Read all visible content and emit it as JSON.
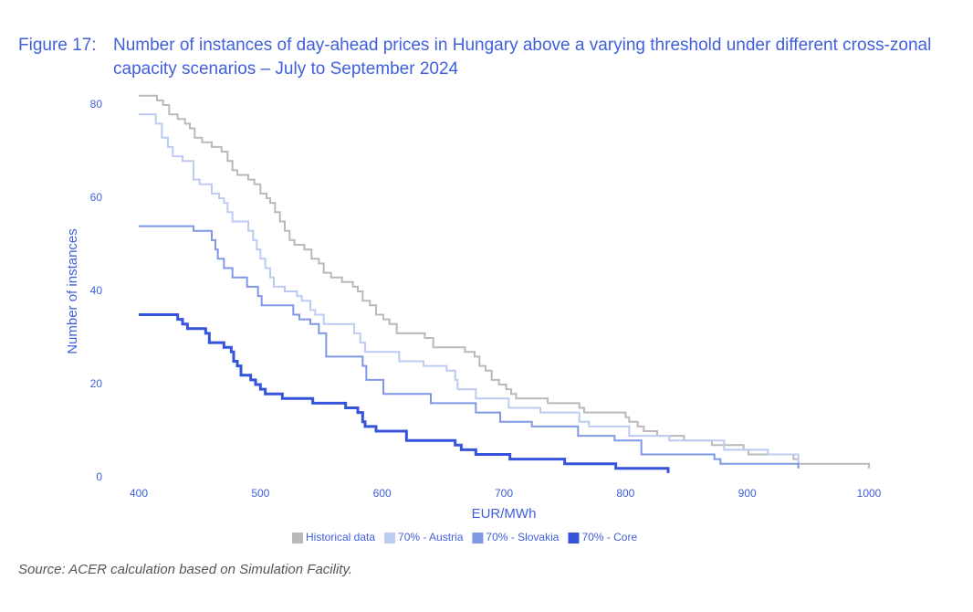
{
  "chart_data": {
    "type": "step",
    "figure_label": "Figure 17:",
    "title": "Number of instances of day-ahead prices in Hungary above a varying threshold under different cross-zonal capacity scenarios – July to September 2024",
    "x_label": "EUR/MWh",
    "y_label": "Number of instances",
    "source": "Source: ACER calculation based on Simulation Facility.",
    "xlim": [
      400,
      1000
    ],
    "xticks": [
      400,
      500,
      600,
      700,
      800,
      900,
      1000
    ],
    "ylim": [
      0,
      80
    ],
    "yticks": [
      0,
      20,
      40,
      60,
      80
    ],
    "grid": false,
    "legend": "bottom",
    "series": [
      {
        "name": "Historical data",
        "color": "#b9b9b9",
        "x": [
          400,
          415,
          420,
          425,
          432,
          438,
          442,
          446,
          452,
          460,
          468,
          473,
          477,
          481,
          490,
          495,
          500,
          505,
          508,
          512,
          516,
          520,
          524,
          528,
          536,
          542,
          548,
          552,
          558,
          567,
          576,
          580,
          584,
          590,
          595,
          601,
          606,
          612,
          635,
          642,
          668,
          676,
          680,
          685,
          690,
          696,
          702,
          706,
          710,
          736,
          762,
          766,
          800,
          803,
          810,
          815,
          826,
          848,
          871,
          897,
          901,
          938,
          942,
          1000
        ],
        "values": [
          82,
          81,
          80,
          78,
          77,
          76,
          75,
          73,
          72,
          71,
          70,
          68,
          66,
          65,
          64,
          63,
          61,
          60,
          59,
          57,
          55,
          53,
          51,
          50,
          49,
          47,
          46,
          44,
          43,
          42,
          41,
          40,
          38,
          37,
          35,
          34,
          33,
          31,
          30,
          28,
          27,
          26,
          24,
          23,
          21,
          20,
          19,
          18,
          17,
          16,
          15,
          14,
          13,
          12,
          11,
          10,
          9,
          8,
          7,
          6,
          5,
          4,
          3,
          2
        ]
      },
      {
        "name": "70% - Austria",
        "color": "#bccbf2",
        "x": [
          400,
          414,
          419,
          424,
          428,
          436,
          445,
          450,
          460,
          466,
          470,
          473,
          477,
          490,
          494,
          497,
          500,
          504,
          508,
          511,
          520,
          530,
          534,
          541,
          545,
          552,
          577,
          582,
          586,
          614,
          634,
          653,
          660,
          662,
          677,
          704,
          730,
          762,
          770,
          803,
          836,
          881,
          917,
          942
        ],
        "values": [
          78,
          76,
          73,
          71,
          69,
          68,
          64,
          63,
          61,
          60,
          59,
          57,
          55,
          53,
          51,
          49,
          47,
          45,
          43,
          41,
          40,
          39,
          38,
          36,
          35,
          33,
          31,
          29,
          27,
          25,
          24,
          23,
          21,
          19,
          17,
          15,
          14,
          12,
          11,
          9,
          8,
          6,
          5,
          2
        ]
      },
      {
        "name": "70% - Slovakia",
        "color": "#7f98e6",
        "x": [
          400,
          445,
          460,
          463,
          465,
          470,
          477,
          489,
          498,
          501,
          527,
          532,
          541,
          548,
          554,
          584,
          587,
          601,
          640,
          677,
          697,
          723,
          761,
          791,
          813,
          873,
          878,
          942
        ],
        "values": [
          54,
          53,
          51,
          49,
          47,
          45,
          43,
          41,
          39,
          37,
          35,
          34,
          33,
          31,
          26,
          24,
          21,
          18,
          16,
          14,
          12,
          11,
          9,
          8,
          5,
          4,
          3,
          2
        ]
      },
      {
        "name": "70% - Core",
        "color": "#3653dc",
        "x": [
          400,
          432,
          436,
          440,
          455,
          458,
          470,
          476,
          478,
          481,
          484,
          492,
          496,
          500,
          504,
          518,
          543,
          570,
          580,
          584,
          586,
          595,
          620,
          660,
          665,
          677,
          705,
          750,
          792,
          835
        ],
        "values": [
          35,
          34,
          33,
          32,
          31,
          29,
          28,
          27,
          25,
          24,
          22,
          21,
          20,
          19,
          18,
          17,
          16,
          15,
          14,
          12,
          11,
          10,
          8,
          7,
          6,
          5,
          4,
          3,
          2,
          1
        ]
      }
    ]
  }
}
